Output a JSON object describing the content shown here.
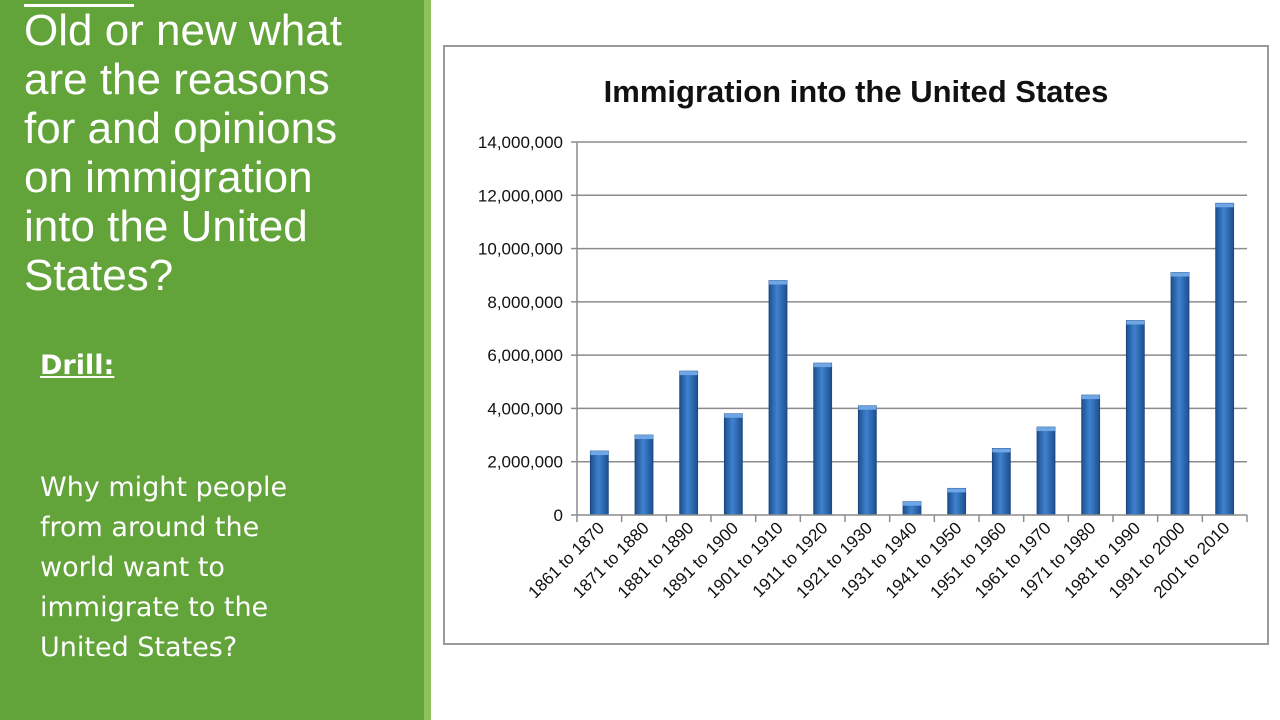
{
  "slide": {
    "title": "Old or new what\nare the reasons\nfor and opinions\non immigration\ninto the United\nStates?",
    "drill_label": "Drill:",
    "question": "Why might people\nfrom around the\nworld want to\nimmigrate to the\nUnited States?"
  },
  "colors": {
    "sidebar": "#62a33a",
    "sidebar_edge": "#8ec15e",
    "bar": "#2f6db5",
    "gridline": "#8c8c8c"
  },
  "chart_data": {
    "type": "bar",
    "title": "Immigration into the United States",
    "xlabel": "",
    "ylabel": "",
    "categories": [
      "1861 to 1870",
      "1871 to 1880",
      "1881 to 1890",
      "1891 to 1900",
      "1901 to 1910",
      "1911 to 1920",
      "1921 to 1930",
      "1931 to 1940",
      "1941 to 1950",
      "1951 to 1960",
      "1961 to 1970",
      "1971 to 1980",
      "1981 to 1990",
      "1991 to 2000",
      "2001 to 2010"
    ],
    "values": [
      2400000,
      3000000,
      5400000,
      3800000,
      8800000,
      5700000,
      4100000,
      500000,
      1000000,
      2500000,
      3300000,
      4500000,
      7300000,
      9100000,
      11700000
    ],
    "ylim": [
      0,
      14000000
    ],
    "yticks": [
      0,
      2000000,
      4000000,
      6000000,
      8000000,
      10000000,
      12000000,
      14000000
    ],
    "ytick_labels": [
      "0",
      "2,000,000",
      "4,000,000",
      "6,000,000",
      "8,000,000",
      "10,000,000",
      "12,000,000",
      "14,000,000"
    ],
    "grid": true,
    "legend": "none"
  }
}
